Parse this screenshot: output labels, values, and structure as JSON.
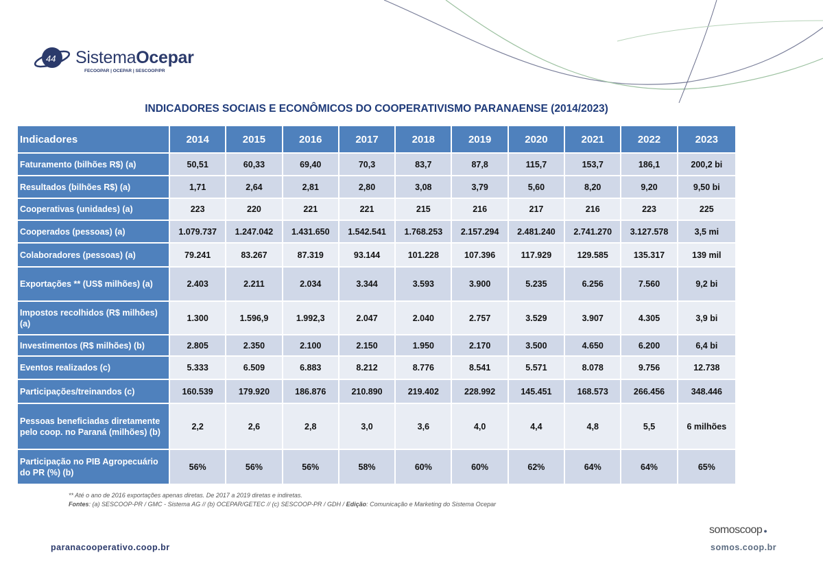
{
  "logo": {
    "name_light": "Sistema",
    "name_bold": "Ocepar",
    "subtitle": "FECOOPAR | OCEPAR | SESCOOP/PR"
  },
  "title": "INDICADORES SOCIAIS E ECONÔMICOS DO COOPERATIVISMO PARANAENSE (2014/2023)",
  "table": {
    "header": [
      "Indicadores",
      "2014",
      "2015",
      "2016",
      "2017",
      "2018",
      "2019",
      "2020",
      "2021",
      "2022",
      "2023"
    ],
    "rows": [
      {
        "label": "Faturamento (bilhões R$) (a)",
        "values": [
          "50,51",
          "60,33",
          "69,40",
          "70,3",
          "83,7",
          "87,8",
          "115,7",
          "153,7",
          "186,1",
          "200,2 bi"
        ]
      },
      {
        "label": "Resultados (bilhões R$) (a)",
        "values": [
          "1,71",
          "2,64",
          "2,81",
          "2,80",
          "3,08",
          "3,79",
          "5,60",
          "8,20",
          "9,20",
          "9,50 bi"
        ]
      },
      {
        "label": "Cooperativas (unidades) (a)",
        "values": [
          "223",
          "220",
          "221",
          "221",
          "215",
          "216",
          "217",
          "216",
          "223",
          "225"
        ]
      },
      {
        "label": "Cooperados (pessoas) (a)",
        "values": [
          "1.079.737",
          "1.247.042",
          "1.431.650",
          "1.542.541",
          "1.768.253",
          "2.157.294",
          "2.481.240",
          "2.741.270",
          "3.127.578",
          "3,5 mi"
        ]
      },
      {
        "label": "Colaboradores (pessoas) (a)",
        "values": [
          "79.241",
          "83.267",
          "87.319",
          "93.144",
          "101.228",
          "107.396",
          "117.929",
          "129.585",
          "135.317",
          "139 mil"
        ]
      },
      {
        "label": "Exportações  ** (US$ milhões) (a)",
        "values": [
          "2.403",
          "2.211",
          "2.034",
          "3.344",
          "3.593",
          "3.900",
          "5.235",
          "6.256",
          "7.560",
          "9,2 bi"
        ]
      },
      {
        "label": "Impostos recolhidos  (R$ milhões) (a)",
        "values": [
          "1.300",
          "1.596,9",
          "1.992,3",
          "2.047",
          "2.040",
          "2.757",
          "3.529",
          "3.907",
          "4.305",
          "3,9 bi"
        ]
      },
      {
        "label": "Investimentos (R$ milhões) (b)",
        "values": [
          "2.805",
          "2.350",
          "2.100",
          "2.150",
          "1.950",
          "2.170",
          "3.500",
          "4.650",
          "6.200",
          "6,4 bi"
        ]
      },
      {
        "label": "Eventos realizados (c)",
        "values": [
          "5.333",
          "6.509",
          "6.883",
          "8.212",
          "8.776",
          "8.541",
          "5.571",
          "8.078",
          "9.756",
          "12.738"
        ]
      },
      {
        "label": "Participações/treinandos (c)",
        "values": [
          "160.539",
          "179.920",
          "186.876",
          "210.890",
          "219.402",
          "228.992",
          "145.451",
          "168.573",
          "266.456",
          "348.446"
        ]
      },
      {
        "label": "Pessoas beneficiadas diretamente pelo coop. no Paraná (milhões) (b)",
        "values": [
          "2,2",
          "2,6",
          "2,8",
          "3,0",
          "3,6",
          "4,0",
          "4,4",
          "4,8",
          "5,5",
          "6 milhões"
        ]
      },
      {
        "label": "Participação no PIB Agropecuário do PR (%) (b)",
        "values": [
          "56%",
          "56%",
          "56%",
          "58%",
          "60%",
          "60%",
          "62%",
          "64%",
          "64%",
          "65%"
        ]
      }
    ]
  },
  "notes": {
    "note": "** Até o ano de 2016 exportações apenas diretas. De 2017 a 2019 diretas e indiretas.",
    "sources_label": "Fontes",
    "sources": ": (a) SESCOOP-PR / GMC - Sistema AG // (b) OCEPAR/GETEC // (c) SESCOOP-PR / GDH / ",
    "edition_label": "Edição",
    "edition": ": Comunicação e Marketing do Sistema Ocepar"
  },
  "footer": {
    "left_url": "paranacooperativo.coop.br",
    "brand": "somoscoop",
    "right_url": "somos.coop.br"
  },
  "colors": {
    "header": "#4f81bd",
    "row_dark": "#d0d8e8",
    "row_light": "#e9edf4",
    "title": "#1f3b7a"
  }
}
